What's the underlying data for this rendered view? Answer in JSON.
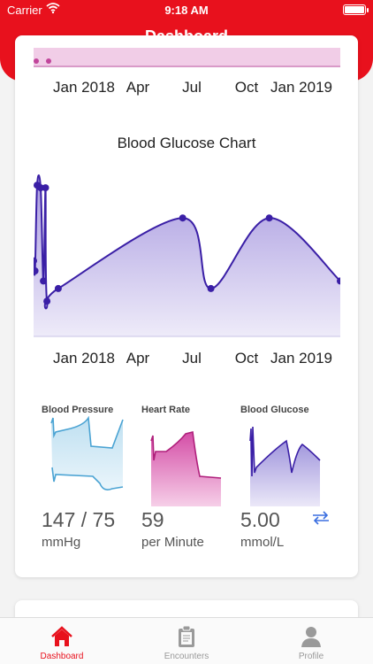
{
  "status_bar": {
    "carrier": "Carrier",
    "time": "9:18 AM"
  },
  "header": {
    "title": "Dashboard"
  },
  "timeline_axis": [
    "Jan 2018",
    "Apr",
    "Jul",
    "Oct",
    "Jan 2019"
  ],
  "glucose_chart": {
    "title": "Blood Glucose Chart"
  },
  "chart_data": {
    "type": "area",
    "title": "Blood Glucose Chart",
    "x_ticks": [
      "Jan 2018",
      "Apr",
      "Jul",
      "Oct",
      "Jan 2019"
    ],
    "series": [
      {
        "x": [
          "2017-12-01",
          "2017-12-03",
          "2017-12-06",
          "2017-12-11",
          "2017-12-15",
          "2017-12-18",
          "2017-12-20",
          "2018-01-05",
          "2018-07-01",
          "2018-08-10",
          "2018-11-01",
          "2019-02-10"
        ],
        "values": [
          6.5,
          6.1,
          9.5,
          9.4,
          5.7,
          9.4,
          4.9,
          5.4,
          8.2,
          5.4,
          8.2,
          5.7
        ]
      }
    ],
    "colors": {
      "line": "#3a1fa6",
      "fill": "#c9c2ec"
    }
  },
  "metrics": [
    {
      "title": "Blood Pressure",
      "value": "147 / 75",
      "unit": "mmHg"
    },
    {
      "title": "Heart Rate",
      "value": "59",
      "unit": "per Minute"
    },
    {
      "title": "Blood Glucose",
      "value": "5.00",
      "unit": "mmol/L"
    }
  ],
  "tabbar": [
    {
      "label": "Dashboard",
      "icon": "home-icon",
      "active": true
    },
    {
      "label": "Encounters",
      "icon": "clipboard-icon",
      "active": false
    },
    {
      "label": "Profile",
      "icon": "person-icon",
      "active": false
    }
  ],
  "theme": {
    "brand": "#e8111d",
    "glucose": "#3a1fa6",
    "heart": "#c1278a",
    "pressure": "#4aa3d3"
  }
}
